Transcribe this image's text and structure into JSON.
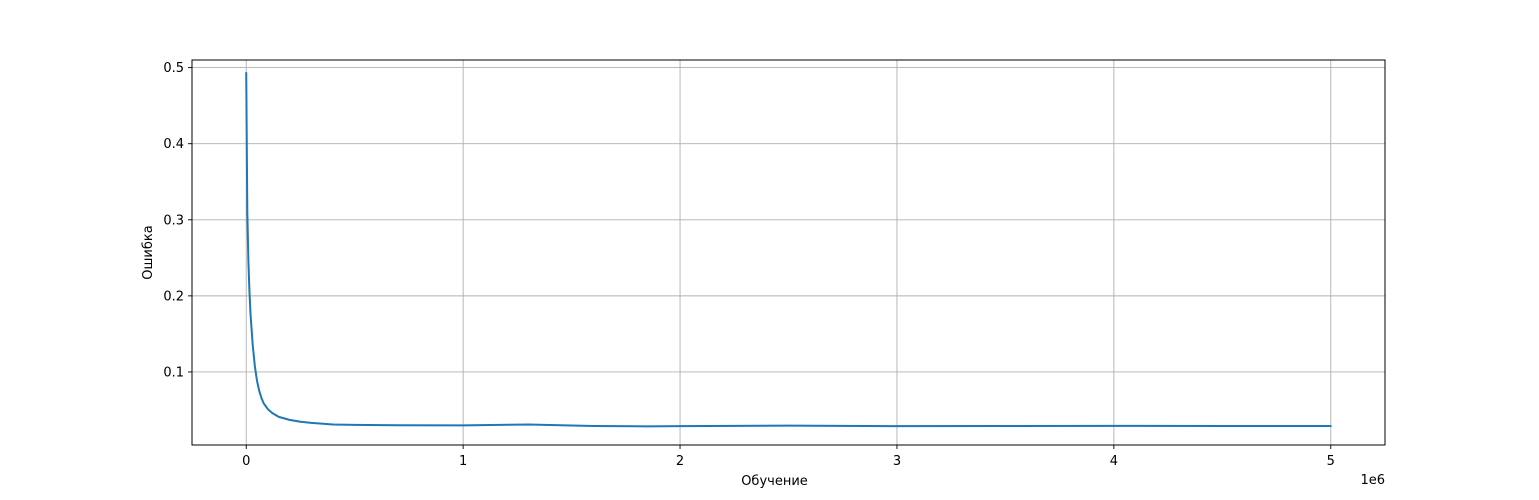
{
  "chart_data": {
    "type": "line",
    "title": "",
    "xlabel": "Обучение",
    "ylabel": "Ошибка",
    "x_offset_text": "1e6",
    "xlim": [
      -0.25,
      5.25
    ],
    "ylim": [
      0.004,
      0.51
    ],
    "x_ticks": [
      0,
      1,
      2,
      3,
      4,
      5
    ],
    "x_tick_labels": [
      "0",
      "1",
      "2",
      "3",
      "4",
      "5"
    ],
    "y_ticks": [
      0.1,
      0.2,
      0.3,
      0.4,
      0.5
    ],
    "y_tick_labels": [
      "0.1",
      "0.2",
      "0.3",
      "0.4",
      "0.5"
    ],
    "grid": true,
    "line_color": "#1f77b4",
    "series": [
      {
        "x": [
          0,
          0.002,
          0.005,
          0.01,
          0.015,
          0.02,
          0.03,
          0.04,
          0.05,
          0.06,
          0.07,
          0.08,
          0.1,
          0.12,
          0.15,
          0.2,
          0.25,
          0.3,
          0.4,
          0.5,
          0.7,
          1.0,
          1.3,
          1.6,
          1.85,
          2.0,
          2.5,
          3.0,
          3.5,
          4.0,
          4.5,
          5.0
        ],
        "y": [
          0.493,
          0.42,
          0.31,
          0.245,
          0.205,
          0.175,
          0.135,
          0.107,
          0.088,
          0.075,
          0.066,
          0.059,
          0.051,
          0.046,
          0.041,
          0.037,
          0.0345,
          0.033,
          0.031,
          0.0305,
          0.03,
          0.0298,
          0.031,
          0.029,
          0.0285,
          0.0288,
          0.0295,
          0.0288,
          0.029,
          0.0292,
          0.0289,
          0.0289
        ]
      }
    ]
  }
}
